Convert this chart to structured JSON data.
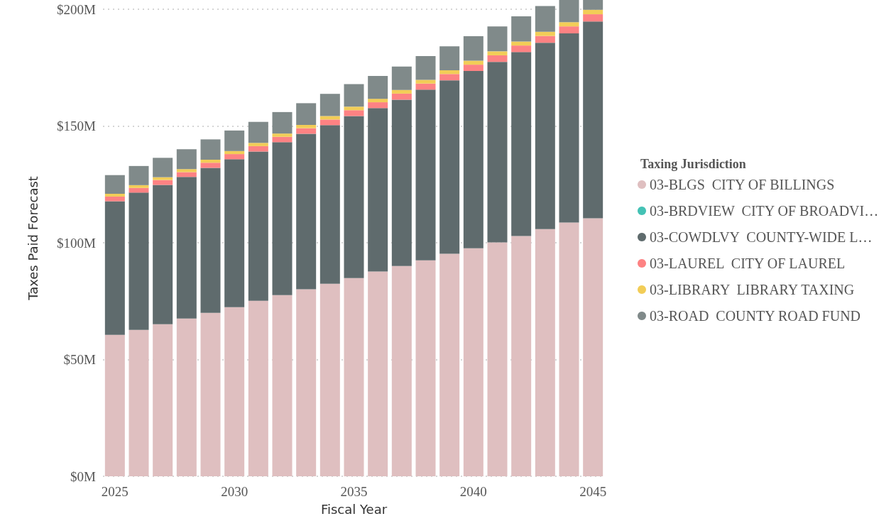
{
  "chart_data": {
    "type": "bar",
    "stacked": true,
    "xlabel": "Fiscal Year",
    "ylabel": "Taxes Paid Forecast",
    "legend_title": "Taxing Jurisdiction",
    "categories": [
      "2025",
      null,
      null,
      null,
      null,
      "2030",
      null,
      null,
      null,
      null,
      "2035",
      null,
      null,
      null,
      null,
      "2040",
      null,
      null,
      null,
      null,
      "2045"
    ],
    "ylim": [
      0,
      204
    ],
    "yticks": [
      {
        "value": 0,
        "label": "$0M"
      },
      {
        "value": 50,
        "label": "$50M"
      },
      {
        "value": 100,
        "label": "$100M"
      },
      {
        "value": 150,
        "label": "$150M"
      },
      {
        "value": 200,
        "label": "$200M"
      }
    ],
    "grid": "y",
    "legend": "right",
    "series": [
      {
        "name": "03-BLGS  CITY OF BILLINGS",
        "color": "#dfbfc0",
        "values": [
          60.6,
          62.7,
          65.1,
          67.6,
          70.0,
          72.4,
          75.2,
          77.6,
          80.1,
          82.5,
          84.9,
          87.7,
          90.1,
          92.5,
          95.3,
          97.7,
          100.2,
          102.9,
          105.9,
          108.7,
          110.5
        ]
      },
      {
        "name": "03-BRDVIEW  CITY OF BROADVI…",
        "color": "#44c2b5",
        "values": [
          null,
          null,
          null,
          null,
          null,
          null,
          null,
          null,
          null,
          null,
          null,
          null,
          null,
          null,
          null,
          null,
          null,
          null,
          null,
          null,
          null
        ]
      },
      {
        "name": "03-COWDLVY  COUNTY-WIDE L…",
        "color": "#5f6b6d",
        "values": [
          57.2,
          58.8,
          59.7,
          60.6,
          62.1,
          63.4,
          63.9,
          65.5,
          66.6,
          67.9,
          69.4,
          70.0,
          71.2,
          73.1,
          74.3,
          75.9,
          77.3,
          78.8,
          79.8,
          81.0,
          84.3
        ]
      },
      {
        "name": "03-LAUREL  CITY OF LAUREL",
        "color": "#fd8283",
        "values": [
          2.0,
          2.0,
          2.1,
          2.1,
          2.2,
          2.2,
          2.3,
          2.3,
          2.4,
          2.4,
          2.5,
          2.5,
          2.6,
          2.6,
          2.7,
          2.7,
          2.8,
          2.8,
          2.9,
          3.0,
          3.1
        ]
      },
      {
        "name": "03-LIBRARY  LIBRARY TAXING",
        "color": "#f2cd57",
        "values": [
          1.2,
          1.2,
          1.2,
          1.3,
          1.3,
          1.3,
          1.4,
          1.4,
          1.4,
          1.5,
          1.5,
          1.5,
          1.6,
          1.6,
          1.6,
          1.7,
          1.7,
          1.7,
          1.8,
          1.8,
          1.9
        ]
      },
      {
        "name": "03-ROAD  COUNTY ROAD FUND",
        "color": "#808a8a",
        "values": [
          8.0,
          8.2,
          8.3,
          8.5,
          8.7,
          8.8,
          9.0,
          9.2,
          9.3,
          9.5,
          9.7,
          9.8,
          10.0,
          10.2,
          10.3,
          10.5,
          10.7,
          10.8,
          11.0,
          9.5,
          4.2
        ]
      }
    ]
  }
}
